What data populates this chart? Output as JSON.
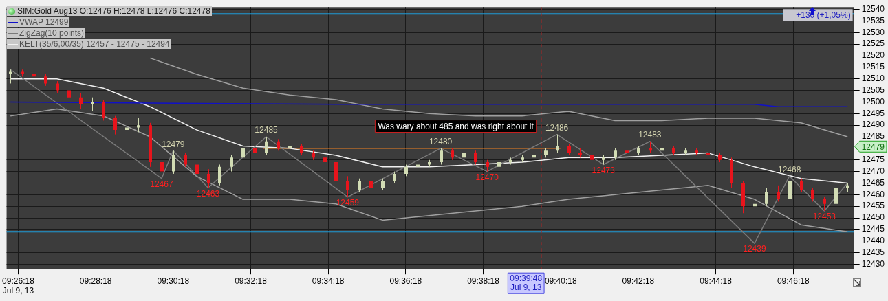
{
  "chart_data": {
    "type": "candlestick",
    "xlim": [
      9.43333,
      9.7978
    ],
    "ylim": [
      12428,
      12541
    ],
    "xticks": [
      {
        "value": 9.438333,
        "label": "09:26:18\nJul 9, 13"
      },
      {
        "value": 9.471667,
        "label": "09:28:18"
      },
      {
        "value": 9.505,
        "label": "09:30:18"
      },
      {
        "value": 9.538333,
        "label": "09:32:18"
      },
      {
        "value": 9.571667,
        "label": "09:34:18"
      },
      {
        "value": 9.605,
        "label": "09:36:18"
      },
      {
        "value": 9.638333,
        "label": "09:38:18"
      },
      {
        "value": 9.671667,
        "label": "09:40:18"
      },
      {
        "value": 9.705,
        "label": "09:42:18"
      },
      {
        "value": 9.738333,
        "label": "09:44:18"
      },
      {
        "value": 9.771667,
        "label": "09:46:18"
      }
    ],
    "yticks": [
      12430,
      12435,
      12440,
      12445,
      12450,
      12455,
      12460,
      12465,
      12470,
      12475,
      {
        "value": 12480,
        "label": null
      },
      12485,
      12490,
      12495,
      12500,
      12505,
      12510,
      12515,
      12520,
      12525,
      12530,
      12535,
      12540
    ],
    "grid": true,
    "legend": "top left",
    "series": [
      {
        "name": "SIM:Gold Aug13 O:12476 H:12478 L:12476 C:12478",
        "x": [
          9.435,
          9.44,
          9.445,
          9.45,
          9.455,
          9.46,
          9.465,
          9.47,
          9.475,
          9.48,
          9.485,
          9.49,
          9.495,
          9.5,
          9.505,
          9.51,
          9.515,
          9.52,
          9.525,
          9.53,
          9.535,
          9.54,
          9.545,
          9.55,
          9.555,
          9.56,
          9.565,
          9.57,
          9.575,
          9.58,
          9.585,
          9.59,
          9.595,
          9.6,
          9.605,
          9.61,
          9.615,
          9.62,
          9.625,
          9.63,
          9.635,
          9.64,
          9.645,
          9.65,
          9.655,
          9.66,
          9.665,
          9.67,
          9.675,
          9.68,
          9.685,
          9.69,
          9.695,
          9.7,
          9.705,
          9.71,
          9.715,
          9.72,
          9.725,
          9.73,
          9.735,
          9.74,
          9.745,
          9.75,
          9.755,
          9.76,
          9.765,
          9.77,
          9.775,
          9.78,
          9.785,
          9.79,
          9.795
        ],
        "ohlc": [
          [
            12512,
            12514,
            12508,
            12513
          ],
          [
            12513,
            12514,
            12511,
            12512
          ],
          [
            12512,
            12513,
            12510,
            12511
          ],
          [
            12511,
            12512,
            12507,
            12508
          ],
          [
            12508,
            12509,
            12504,
            12505
          ],
          [
            12505,
            12506,
            12501,
            12502
          ],
          [
            12502,
            12504,
            12497,
            12499
          ],
          [
            12499,
            12502,
            12496,
            12500
          ],
          [
            12500,
            12501,
            12492,
            12493
          ],
          [
            12493,
            12494,
            12486,
            12488
          ],
          [
            12488,
            12490,
            12485,
            12489
          ],
          [
            12489,
            12493,
            12487,
            12490
          ],
          [
            12490,
            12491,
            12472,
            12474
          ],
          [
            12474,
            12476,
            12467,
            12470
          ],
          [
            12470,
            12479,
            12469,
            12477
          ],
          [
            12477,
            12478,
            12472,
            12473
          ],
          [
            12473,
            12474,
            12468,
            12469
          ],
          [
            12469,
            12471,
            12463,
            12465
          ],
          [
            12465,
            12473,
            12464,
            12472
          ],
          [
            12472,
            12477,
            12470,
            12476
          ],
          [
            12476,
            12481,
            12475,
            12480
          ],
          [
            12480,
            12481,
            12477,
            12478
          ],
          [
            12478,
            12485,
            12477,
            12483
          ],
          [
            12483,
            12484,
            12479,
            12480
          ],
          [
            12480,
            12482,
            12478,
            12481
          ],
          [
            12481,
            12482,
            12477,
            12478
          ],
          [
            12478,
            12479,
            12475,
            12476
          ],
          [
            12476,
            12478,
            12473,
            12474
          ],
          [
            12474,
            12475,
            12464,
            12466
          ],
          [
            12466,
            12468,
            12459,
            12462
          ],
          [
            12462,
            12467,
            12461,
            12466
          ],
          [
            12466,
            12467,
            12462,
            12463
          ],
          [
            12463,
            12467,
            12462,
            12466
          ],
          [
            12466,
            12470,
            12465,
            12469
          ],
          [
            12469,
            12473,
            12468,
            12472
          ],
          [
            12472,
            12474,
            12470,
            12473
          ],
          [
            12473,
            12475,
            12472,
            12474
          ],
          [
            12474,
            12480,
            12473,
            12479
          ],
          [
            12479,
            12480,
            12475,
            12476
          ],
          [
            12476,
            12479,
            12475,
            12478
          ],
          [
            12478,
            12479,
            12473,
            12474
          ],
          [
            12474,
            12475,
            12470,
            12472
          ],
          [
            12472,
            12475,
            12471,
            12474
          ],
          [
            12474,
            12476,
            12473,
            12475
          ],
          [
            12475,
            12477,
            12474,
            12476
          ],
          [
            12476,
            12478,
            12475,
            12477
          ],
          [
            12477,
            12480,
            12476,
            12479
          ],
          [
            12479,
            12486,
            12478,
            12481
          ],
          [
            12481,
            12482,
            12477,
            12478
          ],
          [
            12478,
            12480,
            12476,
            12477
          ],
          [
            12477,
            12478,
            12474,
            12475
          ],
          [
            12475,
            12477,
            12473,
            12476
          ],
          [
            12476,
            12480,
            12475,
            12479
          ],
          [
            12479,
            12480,
            12477,
            12478
          ],
          [
            12478,
            12481,
            12477,
            12480
          ],
          [
            12480,
            12483,
            12478,
            12479
          ],
          [
            12479,
            12481,
            12478,
            12480
          ],
          [
            12480,
            12481,
            12477,
            12478
          ],
          [
            12478,
            12480,
            12477,
            12479
          ],
          [
            12479,
            12480,
            12477,
            12478
          ],
          [
            12478,
            12479,
            12476,
            12477
          ],
          [
            12477,
            12478,
            12474,
            12475
          ],
          [
            12475,
            12476,
            12463,
            12465
          ],
          [
            12465,
            12466,
            12452,
            12455
          ],
          [
            12455,
            12458,
            12439,
            12456
          ],
          [
            12456,
            12463,
            12455,
            12461
          ],
          [
            12461,
            12464,
            12457,
            12458
          ],
          [
            12458,
            12468,
            12457,
            12466
          ],
          [
            12466,
            12467,
            12461,
            12462
          ],
          [
            12462,
            12463,
            12457,
            12458
          ],
          [
            12458,
            12459,
            12453,
            12456
          ],
          [
            12456,
            12464,
            12455,
            12463
          ],
          [
            12463,
            12465,
            12461,
            12464
          ]
        ],
        "colors": [
          "#d2dcb4",
          "#e8141c",
          "#e8141c",
          "#e8141c",
          "#e8141c",
          "#e8141c",
          "#e8141c",
          "#d2dcb4",
          "#e8141c",
          "#e8141c",
          "#d2dcb4",
          "#d2dcb4",
          "#e8141c",
          "#e8141c",
          "#d2dcb4",
          "#e8141c",
          "#e8141c",
          "#e8141c",
          "#d2dcb4",
          "#d2dcb4",
          "#d2dcb4",
          "#e8141c",
          "#d2dcb4",
          "#e8141c",
          "#d2dcb4",
          "#e8141c",
          "#e8141c",
          "#e8141c",
          "#e8141c",
          "#e8141c",
          "#d2dcb4",
          "#e8141c",
          "#d2dcb4",
          "#d2dcb4",
          "#d2dcb4",
          "#d2dcb4",
          "#d2dcb4",
          "#d2dcb4",
          "#e8141c",
          "#d2dcb4",
          "#e8141c",
          "#e8141c",
          "#d2dcb4",
          "#d2dcb4",
          "#d2dcb4",
          "#d2dcb4",
          "#d2dcb4",
          "#d2dcb4",
          "#e8141c",
          "#e8141c",
          "#e8141c",
          "#d2dcb4",
          "#d2dcb4",
          "#e8141c",
          "#d2dcb4",
          "#e8141c",
          "#d2dcb4",
          "#e8141c",
          "#d2dcb4",
          "#e8141c",
          "#e8141c",
          "#e8141c",
          "#e8141c",
          "#e8141c",
          "#d2dcb4",
          "#d2dcb4",
          "#e8141c",
          "#d2dcb4",
          "#e8141c",
          "#e8141c",
          "#e8141c",
          "#d2dcb4",
          "#d2dcb4"
        ]
      },
      {
        "name": "VWAP  12499",
        "type": "line",
        "color": "#1010c8",
        "x": [
          9.435,
          9.575,
          9.755,
          9.765,
          9.795
        ],
        "values": [
          12500,
          12499,
          12499,
          12498,
          12498
        ]
      },
      {
        "name": "ZigZag(10 points)",
        "type": "line",
        "color": "#7a7a7a",
        "x": [
          9.435,
          9.5,
          9.505,
          9.52,
          9.545,
          9.58,
          9.62,
          9.64,
          9.67,
          9.69,
          9.71,
          9.755,
          9.77,
          9.785,
          9.795
        ],
        "values": [
          12514,
          12467,
          12479,
          12463,
          12485,
          12459,
          12480,
          12470,
          12486,
          12473,
          12483,
          12439,
          12468,
          12453,
          12465
        ],
        "value_labels": [
          null,
          "12467",
          "12479",
          "12463",
          "12485",
          "12459",
          "12480",
          "12470",
          "12486",
          "12473",
          "12483",
          "12439",
          "12468",
          "12453",
          null
        ]
      },
      {
        "name": "KELT(35/6,00/35) 12457 - 12475 - 12494",
        "type": "line",
        "color": "#f0f0f0",
        "x": [
          9.435,
          9.455,
          9.475,
          9.495,
          9.515,
          9.535,
          9.555,
          9.575,
          9.595,
          9.615,
          9.635,
          9.655,
          9.675,
          9.695,
          9.715,
          9.735,
          9.755,
          9.775,
          9.795
        ],
        "values": [
          12510,
          12510,
          12506,
          12498,
          12488,
          12481,
          12480,
          12477,
          12472,
          12472,
          12473,
          12474,
          12476,
          12476,
          12477,
          12478,
          12472,
          12467,
          12465
        ]
      },
      {
        "type": "line",
        "color": "#a0a0a0",
        "x": [
          9.495,
          9.515,
          9.535,
          9.555,
          9.575,
          9.595,
          9.615,
          9.635,
          9.655,
          9.675,
          9.695,
          9.715,
          9.735,
          9.755,
          9.775,
          9.795
        ],
        "values": [
          12519,
          12512,
          12506,
          12503,
          12501,
          12497,
          12495,
          12494,
          12494,
          12496,
          12492,
          12492,
          12493,
          12493,
          12491,
          12485
        ]
      },
      {
        "type": "line",
        "color": "#a0a0a0",
        "x": [
          9.435,
          9.455,
          9.475,
          9.495,
          9.515,
          9.535,
          9.555,
          9.575,
          9.595,
          9.615,
          9.635,
          9.655,
          9.675,
          9.695,
          9.715,
          9.735,
          9.755,
          9.775,
          9.795
        ],
        "values": [
          12494,
          12497,
          12494,
          12485,
          12468,
          12458,
          12458,
          12456,
          12449,
          12451,
          12453,
          12455,
          12458,
          12460,
          12462,
          12464,
          12458,
          12447,
          12444
        ]
      },
      {
        "type": "line",
        "color": "#f08020",
        "x": [
          9.54352,
          9.67152
        ],
        "values": [
          12480,
          12480
        ]
      }
    ],
    "ref_lines": [
      {
        "axis": "y",
        "value": 12538,
        "color": "#1e9ad6"
      },
      {
        "axis": "y",
        "value": 12444,
        "color": "#1e9ad6"
      },
      {
        "axis": "x",
        "value": 9.663333,
        "color": "#a02828",
        "line_style": "dashed"
      }
    ],
    "annotations": [
      "+130 (+1,05%)",
      "Was wary about 485 and was right about it",
      "12479",
      "09:39:48",
      "Jul 9, 13"
    ]
  }
}
